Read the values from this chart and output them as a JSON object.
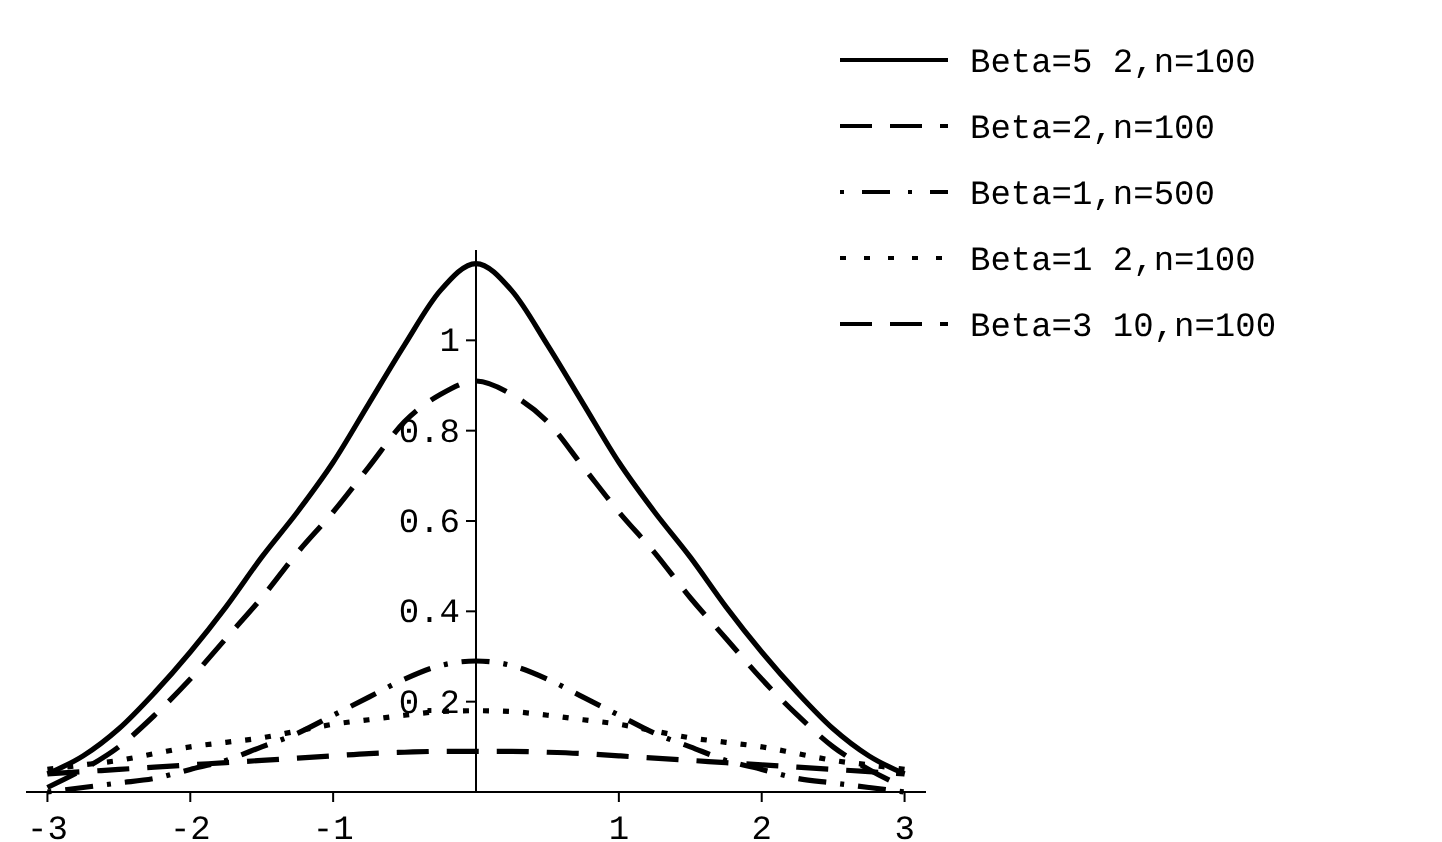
{
  "chart_data": {
    "type": "line",
    "x": [
      -3,
      -2.75,
      -2.5,
      -2.25,
      -2,
      -1.75,
      -1.5,
      -1.25,
      -1,
      -0.75,
      -0.5,
      -0.25,
      0,
      0.25,
      0.5,
      0.75,
      1,
      1.25,
      1.5,
      1.75,
      2,
      2.25,
      2.5,
      2.75,
      3
    ],
    "xlim": [
      -3.15,
      3.15
    ],
    "ylim": [
      0,
      1.2
    ],
    "xticks": [
      -3,
      -2,
      -1,
      1,
      2,
      3
    ],
    "yticks": [
      0.2,
      0.4,
      0.6,
      0.8,
      1
    ],
    "legend": "top right",
    "grid": false,
    "series": [
      {
        "name": "Beta=5 2,n=100",
        "color": "#000000",
        "line_style": "solid",
        "values": [
          0.04,
          0.08,
          0.14,
          0.22,
          0.31,
          0.41,
          0.52,
          0.62,
          0.73,
          0.86,
          0.99,
          1.11,
          1.17,
          1.11,
          0.99,
          0.86,
          0.73,
          0.62,
          0.52,
          0.41,
          0.31,
          0.22,
          0.14,
          0.08,
          0.04
        ]
      },
      {
        "name": "Beta=2,n=100",
        "color": "#000000",
        "line_style": "dashed",
        "values": [
          0.01,
          0.05,
          0.1,
          0.17,
          0.25,
          0.34,
          0.43,
          0.53,
          0.62,
          0.72,
          0.82,
          0.88,
          0.91,
          0.88,
          0.82,
          0.72,
          0.62,
          0.53,
          0.43,
          0.34,
          0.25,
          0.17,
          0.1,
          0.05,
          0.01
        ]
      },
      {
        "name": "Beta=1,n=500",
        "color": "#000000",
        "line_style": "dashdot",
        "values": [
          0,
          0.01,
          0.02,
          0.03,
          0.05,
          0.07,
          0.1,
          0.13,
          0.17,
          0.21,
          0.25,
          0.28,
          0.29,
          0.28,
          0.25,
          0.21,
          0.17,
          0.13,
          0.1,
          0.07,
          0.05,
          0.03,
          0.02,
          0.01,
          0
        ]
      },
      {
        "name": "Beta=1 2,n=100",
        "color": "#000000",
        "line_style": "dotted",
        "values": [
          0.05,
          0.06,
          0.07,
          0.085,
          0.1,
          0.11,
          0.12,
          0.135,
          0.15,
          0.16,
          0.17,
          0.178,
          0.18,
          0.178,
          0.17,
          0.16,
          0.15,
          0.135,
          0.12,
          0.11,
          0.1,
          0.085,
          0.07,
          0.06,
          0.05
        ]
      },
      {
        "name": "Beta=3 10,n=100",
        "color": "#000000",
        "line_style": "dashed",
        "values": [
          0.04,
          0.045,
          0.05,
          0.055,
          0.06,
          0.065,
          0.07,
          0.075,
          0.08,
          0.085,
          0.088,
          0.09,
          0.09,
          0.09,
          0.088,
          0.085,
          0.08,
          0.075,
          0.07,
          0.065,
          0.06,
          0.055,
          0.05,
          0.045,
          0.04
        ]
      }
    ]
  }
}
